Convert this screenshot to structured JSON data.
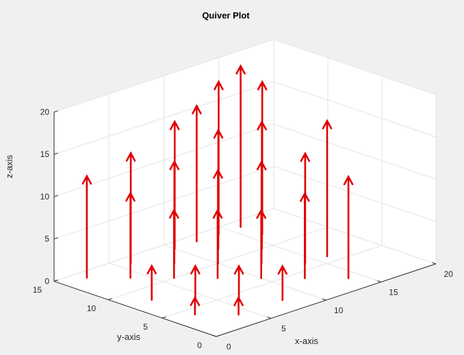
{
  "chart_data": {
    "type": "quiver3",
    "title": "Quiver Plot",
    "xlabel": "x-axis",
    "ylabel": "y-axis",
    "zlabel": "z-axis",
    "xlim": [
      0,
      20
    ],
    "ylim": [
      0,
      15
    ],
    "zlim": [
      0,
      20
    ],
    "xticks": [
      "0",
      "5",
      "10",
      "15",
      "20"
    ],
    "yticks": [
      "0",
      "5",
      "10",
      "15"
    ],
    "zticks": [
      "0",
      "5",
      "10",
      "15",
      "20"
    ],
    "grid": true,
    "arrow_color": "#e00000",
    "arrows": [
      {
        "x": 2,
        "y": 4,
        "z": 0,
        "w": 2
      },
      {
        "x": 4,
        "y": 2,
        "z": 0,
        "w": 2
      },
      {
        "x": 6,
        "y": 4,
        "z": 0,
        "w": 4
      },
      {
        "x": 4,
        "y": 6,
        "z": 0,
        "w": 4
      },
      {
        "x": 2,
        "y": 8,
        "z": 0,
        "w": 4
      },
      {
        "x": 8,
        "y": 2,
        "z": 0,
        "w": 4
      },
      {
        "x": 8,
        "y": 8,
        "z": 0,
        "w": 8
      },
      {
        "x": 6,
        "y": 10,
        "z": 0,
        "w": 8
      },
      {
        "x": 10,
        "y": 6,
        "z": 0,
        "w": 8
      },
      {
        "x": 4,
        "y": 12,
        "z": 0,
        "w": 10
      },
      {
        "x": 12,
        "y": 4,
        "z": 0,
        "w": 10
      },
      {
        "x": 2,
        "y": 14,
        "z": 0,
        "w": 12
      },
      {
        "x": 14,
        "y": 2,
        "z": 0,
        "w": 12
      },
      {
        "x": 10,
        "y": 10,
        "z": 0,
        "w": 11
      },
      {
        "x": 8,
        "y": 12,
        "z": 0,
        "w": 12
      },
      {
        "x": 12,
        "y": 8,
        "z": 0,
        "w": 12
      },
      {
        "x": 6,
        "y": 14,
        "z": 0,
        "w": 13
      },
      {
        "x": 14,
        "y": 6,
        "z": 0,
        "w": 13
      },
      {
        "x": 12,
        "y": 12,
        "z": 0,
        "w": 14
      },
      {
        "x": 10,
        "y": 14,
        "z": 0,
        "w": 15
      },
      {
        "x": 14,
        "y": 10,
        "z": 0,
        "w": 15
      },
      {
        "x": 16,
        "y": 6,
        "z": 0,
        "w": 16
      },
      {
        "x": 12,
        "y": 14,
        "z": 0,
        "w": 16
      },
      {
        "x": 14,
        "y": 14,
        "z": 0,
        "w": 18
      },
      {
        "x": 16,
        "y": 12,
        "z": 0,
        "w": 18
      },
      {
        "x": 16,
        "y": 14,
        "z": 0,
        "w": 19
      }
    ]
  }
}
